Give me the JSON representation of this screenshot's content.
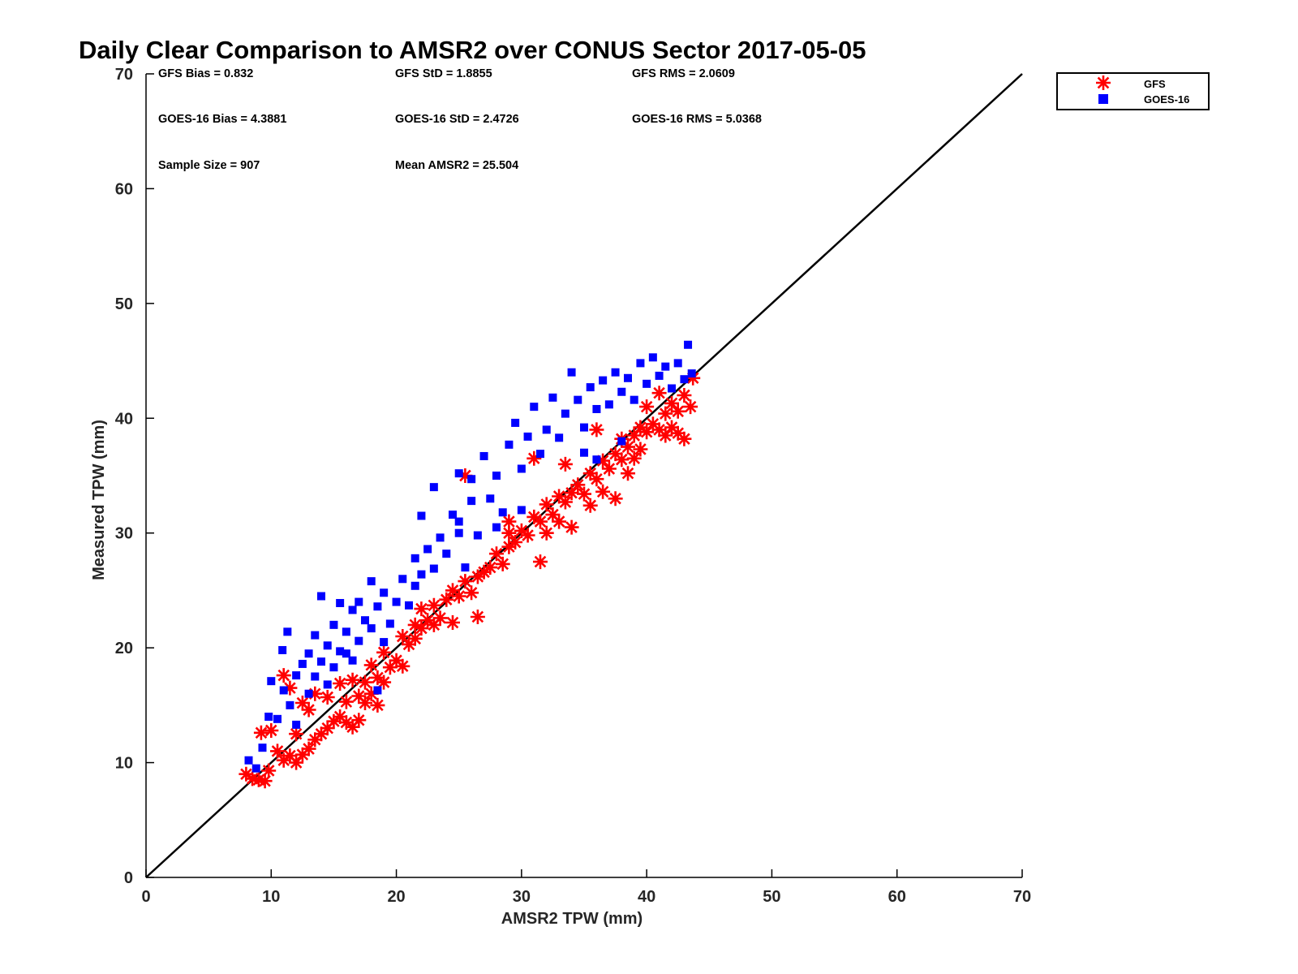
{
  "chart_data": {
    "type": "scatter",
    "title": "Daily Clear Comparison to AMSR2 over CONUS Sector 2017-05-05",
    "xlabel": "AMSR2 TPW (mm)",
    "ylabel": "Measured TPW (mm)",
    "xlim": [
      0,
      70
    ],
    "ylim": [
      0,
      70
    ],
    "xticks": [
      0,
      10,
      20,
      30,
      40,
      50,
      60,
      70
    ],
    "yticks": [
      0,
      10,
      20,
      30,
      40,
      50,
      60,
      70
    ],
    "grid": false,
    "legend_position": "outside-top-right",
    "reference_line": {
      "x": [
        0,
        70
      ],
      "y": [
        0,
        70
      ]
    },
    "stats": [
      {
        "text": "GFS Bias = 0.832",
        "row": 0,
        "col": 0
      },
      {
        "text": "GFS StD = 1.8855",
        "row": 0,
        "col": 1
      },
      {
        "text": "GFS RMS = 2.0609",
        "row": 0,
        "col": 2
      },
      {
        "text": "GOES-16 Bias = 4.3881",
        "row": 1,
        "col": 0
      },
      {
        "text": "GOES-16 StD = 2.4726",
        "row": 1,
        "col": 1
      },
      {
        "text": "GOES-16 RMS = 5.0368",
        "row": 1,
        "col": 2
      },
      {
        "text": "Sample Size = 907",
        "row": 2,
        "col": 0
      },
      {
        "text": "Mean AMSR2 = 25.504",
        "row": 2,
        "col": 1
      }
    ],
    "series": [
      {
        "name": "GFS",
        "marker": "asterisk",
        "color": "#ff0000",
        "points": [
          [
            8.0,
            9.0
          ],
          [
            8.5,
            8.6
          ],
          [
            9.0,
            8.5
          ],
          [
            9.5,
            8.4
          ],
          [
            9.8,
            9.3
          ],
          [
            9.2,
            12.6
          ],
          [
            10.0,
            12.8
          ],
          [
            10.5,
            11.0
          ],
          [
            11.0,
            10.2
          ],
          [
            11.0,
            17.6
          ],
          [
            11.5,
            10.6
          ],
          [
            11.5,
            16.5
          ],
          [
            12.0,
            10.0
          ],
          [
            12.0,
            12.5
          ],
          [
            12.5,
            10.7
          ],
          [
            12.5,
            15.2
          ],
          [
            13.0,
            11.2
          ],
          [
            13.0,
            14.6
          ],
          [
            13.5,
            12.0
          ],
          [
            13.5,
            16.0
          ],
          [
            14.0,
            12.5
          ],
          [
            14.5,
            13.0
          ],
          [
            14.5,
            15.7
          ],
          [
            15.0,
            13.6
          ],
          [
            15.5,
            14.0
          ],
          [
            15.5,
            16.9
          ],
          [
            16.0,
            13.5
          ],
          [
            16.0,
            15.3
          ],
          [
            16.5,
            13.1
          ],
          [
            16.5,
            17.2
          ],
          [
            17.0,
            13.7
          ],
          [
            17.0,
            15.8
          ],
          [
            17.5,
            15.2
          ],
          [
            17.5,
            17.0
          ],
          [
            18.0,
            16.0
          ],
          [
            18.0,
            18.5
          ],
          [
            18.5,
            15.0
          ],
          [
            18.5,
            17.4
          ],
          [
            19.0,
            17.0
          ],
          [
            19.0,
            19.6
          ],
          [
            19.5,
            18.3
          ],
          [
            20.0,
            18.9
          ],
          [
            20.5,
            18.4
          ],
          [
            20.5,
            21.0
          ],
          [
            21.0,
            20.3
          ],
          [
            21.5,
            20.8
          ],
          [
            21.5,
            22.0
          ],
          [
            22.0,
            21.7
          ],
          [
            22.0,
            23.4
          ],
          [
            22.5,
            22.4
          ],
          [
            23.0,
            22.0
          ],
          [
            23.0,
            23.7
          ],
          [
            23.5,
            22.6
          ],
          [
            24.0,
            24.2
          ],
          [
            24.5,
            22.2
          ],
          [
            24.5,
            25.0
          ],
          [
            25.0,
            24.5
          ],
          [
            25.5,
            25.8
          ],
          [
            26.0,
            24.8
          ],
          [
            26.5,
            22.7
          ],
          [
            26.5,
            26.2
          ],
          [
            27.0,
            26.6
          ],
          [
            27.5,
            27.0
          ],
          [
            28.0,
            28.2
          ],
          [
            28.5,
            27.3
          ],
          [
            29.0,
            28.8
          ],
          [
            29.0,
            30.0
          ],
          [
            29.5,
            29.2
          ],
          [
            30.0,
            30.2
          ],
          [
            30.5,
            29.8
          ],
          [
            31.0,
            31.4
          ],
          [
            31.5,
            31.0
          ],
          [
            31.5,
            27.5
          ],
          [
            32.0,
            30.0
          ],
          [
            32.0,
            32.5
          ],
          [
            32.5,
            31.6
          ],
          [
            33.0,
            31.0
          ],
          [
            33.0,
            33.2
          ],
          [
            33.5,
            32.7
          ],
          [
            34.0,
            33.5
          ],
          [
            34.0,
            30.5
          ],
          [
            34.5,
            34.2
          ],
          [
            35.0,
            33.4
          ],
          [
            35.5,
            35.2
          ],
          [
            35.5,
            32.4
          ],
          [
            36.0,
            34.7
          ],
          [
            36.5,
            33.6
          ],
          [
            36.5,
            36.3
          ],
          [
            37.0,
            35.6
          ],
          [
            37.5,
            33.0
          ],
          [
            37.5,
            36.9
          ],
          [
            38.0,
            36.4
          ],
          [
            38.0,
            38.2
          ],
          [
            38.5,
            35.2
          ],
          [
            38.5,
            37.5
          ],
          [
            39.0,
            38.5
          ],
          [
            39.0,
            36.5
          ],
          [
            39.5,
            39.2
          ],
          [
            39.5,
            37.3
          ],
          [
            40.0,
            38.8
          ],
          [
            40.0,
            41.0
          ],
          [
            40.5,
            39.5
          ],
          [
            41.0,
            39.0
          ],
          [
            41.0,
            42.2
          ],
          [
            41.5,
            38.5
          ],
          [
            41.5,
            40.4
          ],
          [
            42.0,
            39.2
          ],
          [
            42.0,
            41.3
          ],
          [
            42.5,
            40.6
          ],
          [
            42.5,
            38.7
          ],
          [
            43.0,
            42.0
          ],
          [
            43.0,
            38.2
          ],
          [
            43.5,
            41.0
          ],
          [
            43.7,
            43.5
          ],
          [
            25.5,
            35.0
          ],
          [
            29.0,
            31.0
          ],
          [
            31.0,
            36.5
          ],
          [
            33.5,
            36.0
          ],
          [
            36.0,
            39.0
          ]
        ]
      },
      {
        "name": "GOES-16",
        "marker": "square",
        "color": "#0000ff",
        "points": [
          [
            8.2,
            10.2
          ],
          [
            8.8,
            9.5
          ],
          [
            9.3,
            11.3
          ],
          [
            9.8,
            14.0
          ],
          [
            10.0,
            17.1
          ],
          [
            10.5,
            13.8
          ],
          [
            10.9,
            19.8
          ],
          [
            11.0,
            16.3
          ],
          [
            11.3,
            21.4
          ],
          [
            11.5,
            15.0
          ],
          [
            12.0,
            17.6
          ],
          [
            12.0,
            13.3
          ],
          [
            12.5,
            18.6
          ],
          [
            13.0,
            16.0
          ],
          [
            13.0,
            19.5
          ],
          [
            13.5,
            17.5
          ],
          [
            13.5,
            21.1
          ],
          [
            14.0,
            18.8
          ],
          [
            14.0,
            24.5
          ],
          [
            14.5,
            20.2
          ],
          [
            14.5,
            16.8
          ],
          [
            15.0,
            22.0
          ],
          [
            15.0,
            18.3
          ],
          [
            15.5,
            23.9
          ],
          [
            15.5,
            19.7
          ],
          [
            16.0,
            21.4
          ],
          [
            16.5,
            23.3
          ],
          [
            16.5,
            18.9
          ],
          [
            17.0,
            20.6
          ],
          [
            17.0,
            24.0
          ],
          [
            17.5,
            22.4
          ],
          [
            18.0,
            25.8
          ],
          [
            18.0,
            21.7
          ],
          [
            18.5,
            23.6
          ],
          [
            18.5,
            16.3
          ],
          [
            19.0,
            24.8
          ],
          [
            19.5,
            22.1
          ],
          [
            20.0,
            24.0
          ],
          [
            20.5,
            26.0
          ],
          [
            21.0,
            23.7
          ],
          [
            21.5,
            27.8
          ],
          [
            21.5,
            25.4
          ],
          [
            22.0,
            26.4
          ],
          [
            22.5,
            28.6
          ],
          [
            23.0,
            26.9
          ],
          [
            23.5,
            29.6
          ],
          [
            23.0,
            34.0
          ],
          [
            24.0,
            28.2
          ],
          [
            24.5,
            31.6
          ],
          [
            25.0,
            30.0
          ],
          [
            25.0,
            35.2
          ],
          [
            25.5,
            27.0
          ],
          [
            26.0,
            32.8
          ],
          [
            26.0,
            34.7
          ],
          [
            26.5,
            29.8
          ],
          [
            27.0,
            36.7
          ],
          [
            27.5,
            33.0
          ],
          [
            28.0,
            35.0
          ],
          [
            28.5,
            31.8
          ],
          [
            29.0,
            37.7
          ],
          [
            29.5,
            39.6
          ],
          [
            30.0,
            35.6
          ],
          [
            30.5,
            38.4
          ],
          [
            31.0,
            41.0
          ],
          [
            31.5,
            36.9
          ],
          [
            32.0,
            39.0
          ],
          [
            32.5,
            41.8
          ],
          [
            33.0,
            38.3
          ],
          [
            33.5,
            40.4
          ],
          [
            34.0,
            44.0
          ],
          [
            34.5,
            41.6
          ],
          [
            35.0,
            39.2
          ],
          [
            35.5,
            42.7
          ],
          [
            36.0,
            40.8
          ],
          [
            36.5,
            43.3
          ],
          [
            37.0,
            41.2
          ],
          [
            37.5,
            44.0
          ],
          [
            38.0,
            42.3
          ],
          [
            38.5,
            43.5
          ],
          [
            39.0,
            41.6
          ],
          [
            39.5,
            44.8
          ],
          [
            40.0,
            43.0
          ],
          [
            40.5,
            45.3
          ],
          [
            41.0,
            43.7
          ],
          [
            41.5,
            44.5
          ],
          [
            42.0,
            42.6
          ],
          [
            42.5,
            44.8
          ],
          [
            43.0,
            43.4
          ],
          [
            43.3,
            46.4
          ],
          [
            43.6,
            43.9
          ],
          [
            36.0,
            36.4
          ],
          [
            38.0,
            38.0
          ],
          [
            22.0,
            31.5
          ],
          [
            25.0,
            31.0
          ],
          [
            30.0,
            32.0
          ],
          [
            35.0,
            37.0
          ],
          [
            28.0,
            30.5
          ],
          [
            19.0,
            20.5
          ],
          [
            16.0,
            19.5
          ]
        ]
      }
    ]
  }
}
